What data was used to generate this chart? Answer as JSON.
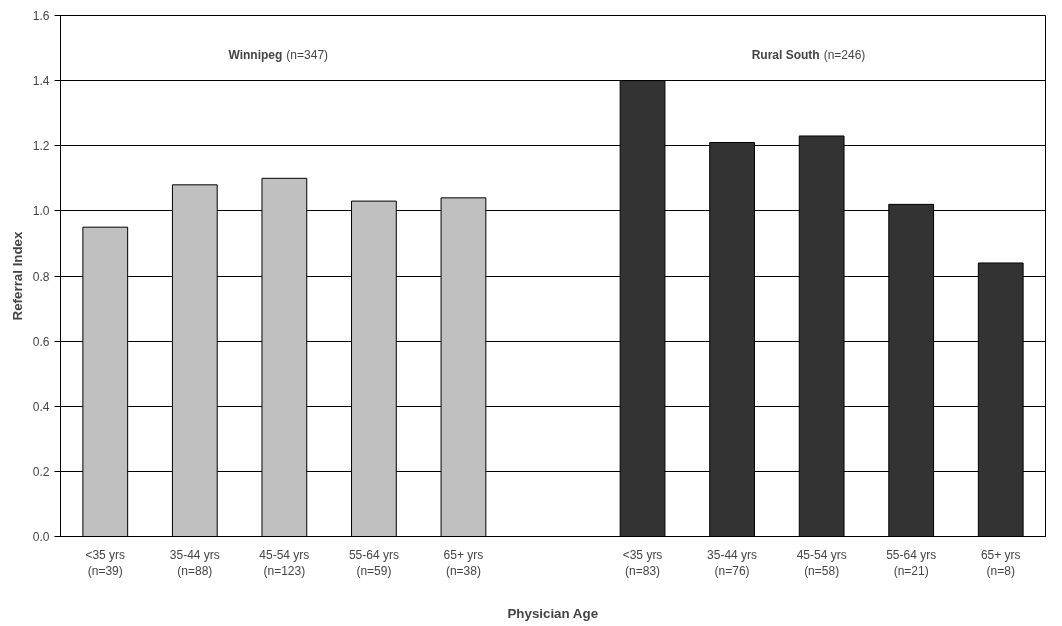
{
  "chart_data": {
    "type": "bar",
    "xlabel": "Physician Age",
    "ylabel": "Referral Index",
    "categories": [
      "<35 yrs\n(n=39)",
      "35-44 yrs\n(n=88)",
      "45-54 yrs\n(n=123)",
      "55-64 yrs\n(n=59)",
      "65+ yrs\n(n=38)",
      null,
      "<35 yrs\n(n=83)",
      "35-44 yrs\n(n=76)",
      "45-54 yrs\n(n=58)",
      "55-64 yrs\n(n=21)",
      "65+ yrs\n(n=8)"
    ],
    "values": [
      0.95,
      1.08,
      1.1,
      1.03,
      1.04,
      null,
      1.4,
      1.21,
      1.23,
      1.02,
      0.84
    ],
    "colors": [
      "#c0c0c0",
      "#c0c0c0",
      "#c0c0c0",
      "#c0c0c0",
      "#c0c0c0",
      "#c0c0c0",
      "#333333",
      "#333333",
      "#333333",
      "#333333",
      "#333333"
    ],
    "annotations": [
      "Winnipeg",
      "(n=347)",
      "Rural South",
      "(n=246)"
    ],
    "ylim": [
      0,
      1.6
    ],
    "yticks": [
      {
        "value": 0,
        "label": "0.0"
      },
      {
        "value": 0.2,
        "label": "0.2"
      },
      {
        "value": 0.4,
        "label": "0.4"
      },
      {
        "value": 0.6,
        "label": "0.6"
      },
      {
        "value": 0.8,
        "label": "0.8"
      },
      {
        "value": 1.0,
        "label": "1.0"
      },
      {
        "value": 1.2,
        "label": "1.2"
      },
      {
        "value": 1.4,
        "label": "1.4"
      },
      {
        "value": 1.6,
        "label": "1.6"
      }
    ],
    "grid": "y"
  }
}
